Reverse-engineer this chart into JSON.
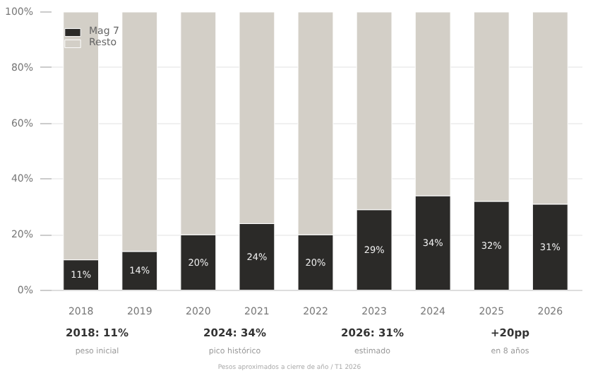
{
  "chart_data": {
    "type": "bar",
    "stacked": true,
    "categories": [
      "2018",
      "2019",
      "2020",
      "2021",
      "2022",
      "2023",
      "2024",
      "2025",
      "2026"
    ],
    "series": [
      {
        "name": "Mag 7",
        "color": "#2b2a28",
        "values": [
          11,
          14,
          20,
          24,
          20,
          29,
          34,
          32,
          31
        ],
        "value_labels": [
          "11%",
          "14%",
          "20%",
          "24%",
          "20%",
          "29%",
          "34%",
          "32%",
          "31%"
        ]
      },
      {
        "name": "Resto",
        "color": "#d3cfc7",
        "values": [
          89,
          86,
          80,
          76,
          80,
          71,
          66,
          68,
          69
        ]
      }
    ],
    "ylim": [
      0,
      100
    ],
    "yticks": [
      {
        "value": 0,
        "label": "0%"
      },
      {
        "value": 20,
        "label": "20%"
      },
      {
        "value": 40,
        "label": "40%"
      },
      {
        "value": 60,
        "label": "60%"
      },
      {
        "value": 80,
        "label": "80%"
      },
      {
        "value": 100,
        "label": "100%"
      }
    ],
    "grid": "y",
    "legend": "top left",
    "annotations": [
      "2018: 11%",
      "peso inicial",
      "2024: 34%",
      "pico histórico",
      "2026: 31%",
      "estimado",
      "+20pp",
      "en 8 años",
      "Pesos aproximados a cierre de año / T1 2026"
    ]
  }
}
